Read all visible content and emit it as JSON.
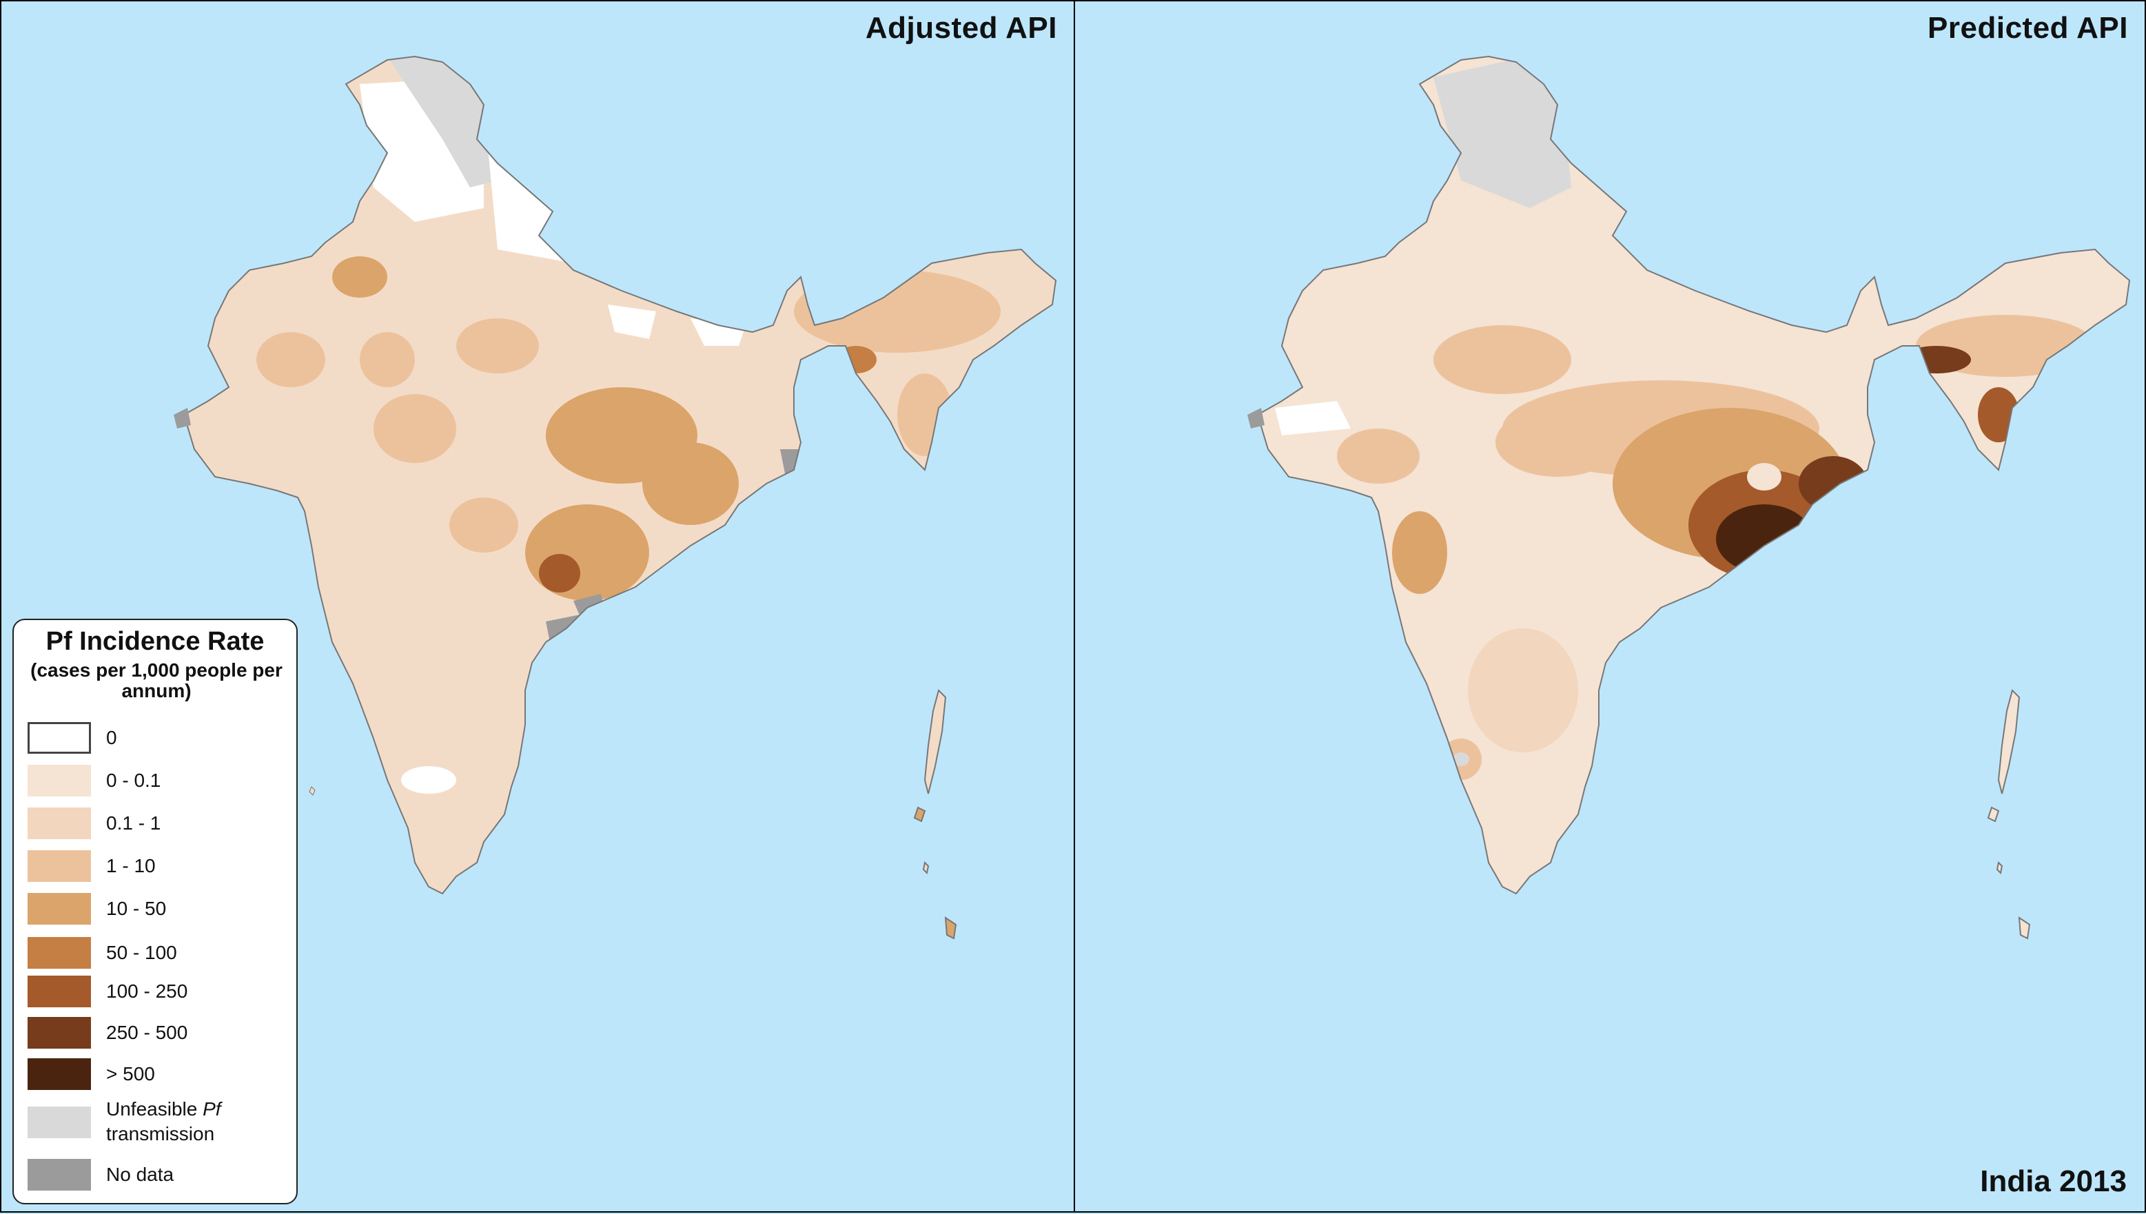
{
  "panels": {
    "left_title": "Adjusted API",
    "right_title": "Predicted API",
    "footer_label": "India 2013"
  },
  "legend": {
    "title": "Pf Incidence Rate",
    "subtitle": "(cases per 1,000 people per annum)",
    "items": [
      {
        "label": "0",
        "color": "#ffffff"
      },
      {
        "label": "0 - 0.1",
        "color": "#f5e3d4"
      },
      {
        "label": "0.1 - 1",
        "color": "#f2d6bd"
      },
      {
        "label": "1 - 10",
        "color": "#ecc29d"
      },
      {
        "label": "10 - 50",
        "color": "#dba46b"
      },
      {
        "label": "50 - 100",
        "color": "#c57e43"
      },
      {
        "label": "100 - 250",
        "color": "#a45a2a"
      },
      {
        "label": "250 - 500",
        "color": "#763c1c"
      },
      {
        "label": "> 500",
        "color": "#4b2410"
      },
      {
        "label_pre": "Unfeasible",
        "label_italic": "Pf",
        "label_post": "transmission",
        "color": "#d9d9d9"
      },
      {
        "label": "No data",
        "color": "#9b9b9b"
      }
    ]
  },
  "colors": {
    "ocean": "#bde6fb",
    "frame": "#000000",
    "unfeasible": "#d9d9d9",
    "no_data": "#9b9b9b"
  }
}
